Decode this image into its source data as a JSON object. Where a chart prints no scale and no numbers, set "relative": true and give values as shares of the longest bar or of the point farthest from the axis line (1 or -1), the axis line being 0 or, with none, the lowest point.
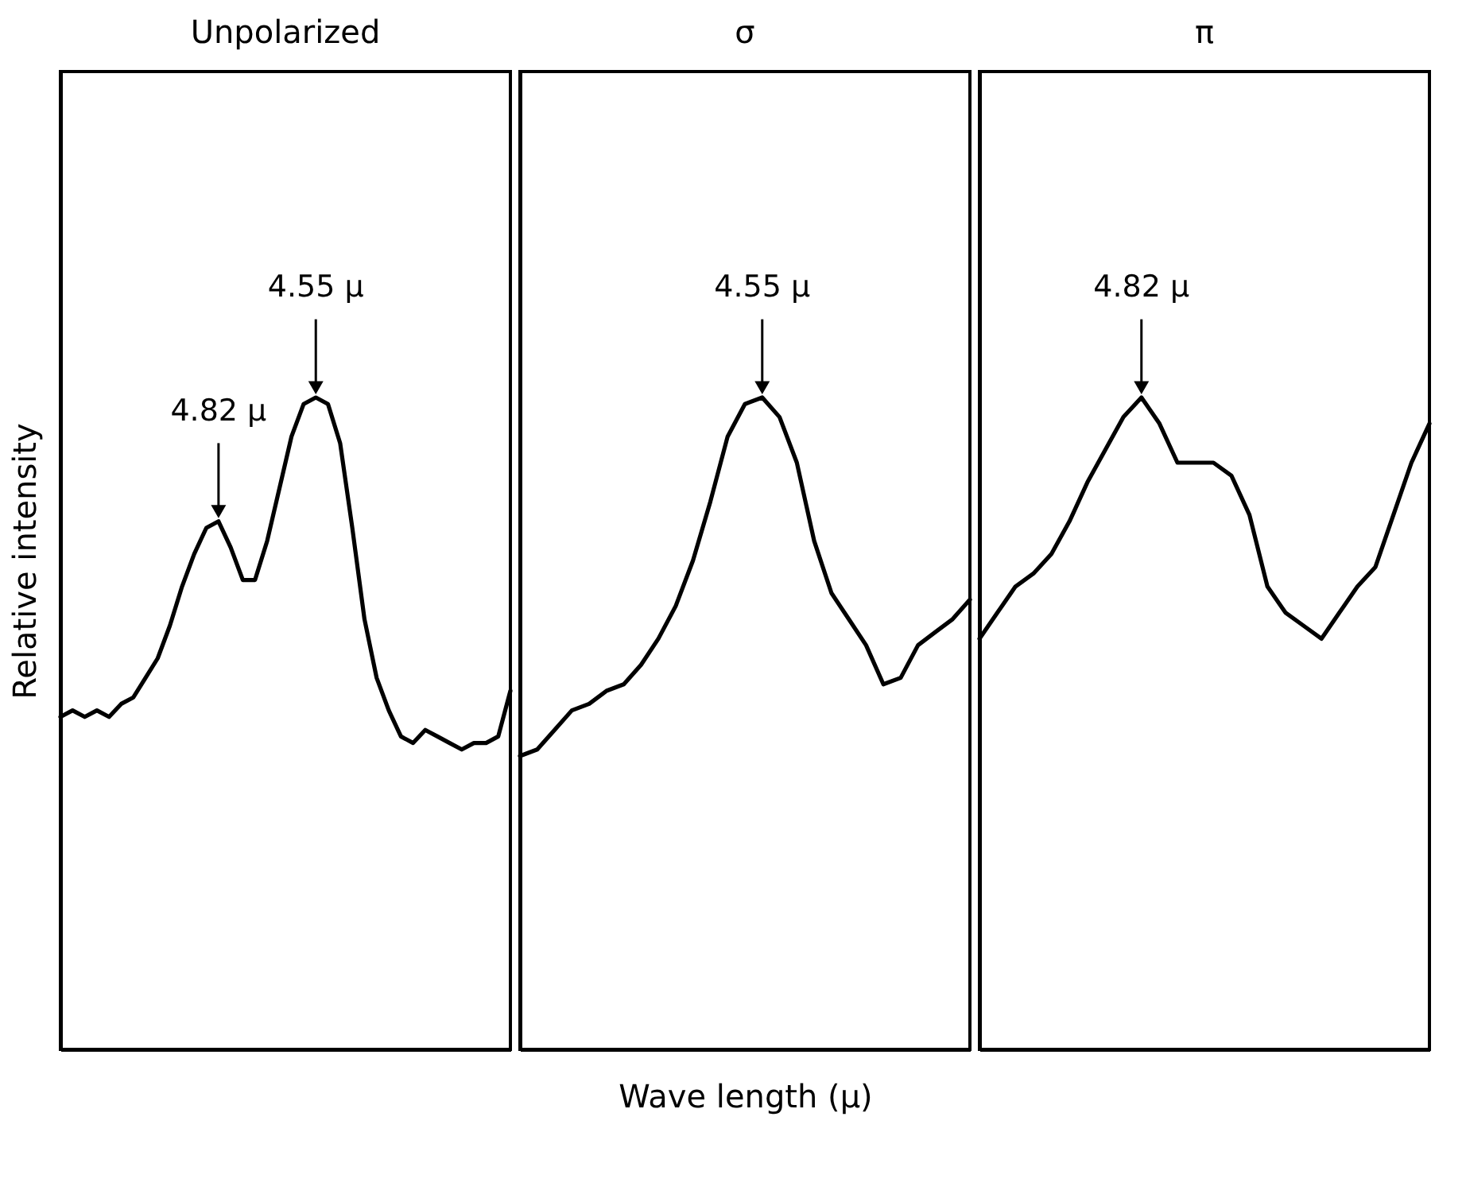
{
  "chart_data": [
    {
      "type": "line",
      "relative": true,
      "title": "Unpolarized",
      "ylabel": "Relative intensity",
      "tick_labels": false,
      "categories": [
        null,
        null,
        null,
        null,
        null,
        null,
        null,
        null,
        null,
        null,
        null,
        null,
        null,
        null,
        null,
        null,
        null,
        null,
        null,
        null,
        null,
        null,
        null,
        null,
        null,
        null,
        null,
        null,
        null,
        null,
        null,
        null,
        null,
        null,
        null,
        null,
        null,
        null
      ],
      "series": [
        {
          "color": "#000000",
          "values": [
            0.51,
            0.52,
            0.51,
            0.52,
            0.51,
            0.53,
            0.54,
            0.57,
            0.6,
            0.65,
            0.71,
            0.76,
            0.8,
            0.81,
            0.77,
            0.72,
            0.72,
            0.78,
            0.86,
            0.94,
            0.99,
            1.0,
            0.99,
            0.93,
            0.8,
            0.66,
            0.57,
            0.52,
            0.48,
            0.47,
            0.49,
            0.48,
            0.47,
            0.46,
            0.47,
            0.47,
            0.48,
            0.55
          ]
        }
      ],
      "annotations": [
        {
          "text": "4.82 μ",
          "y": 0.81
        },
        {
          "text": "4.55 μ",
          "y": 1.0
        }
      ]
    },
    {
      "type": "line",
      "relative": true,
      "title": "σ",
      "xlabel": "Wave length (μ)",
      "tick_labels": false,
      "categories": [
        null,
        null,
        null,
        null,
        null,
        null,
        null,
        null,
        null,
        null,
        null,
        null,
        null,
        null,
        null,
        null,
        null,
        null,
        null,
        null,
        null,
        null,
        null,
        null,
        null,
        null,
        null
      ],
      "series": [
        {
          "color": "#000000",
          "values": [
            0.45,
            0.46,
            0.49,
            0.52,
            0.53,
            0.55,
            0.56,
            0.59,
            0.63,
            0.68,
            0.75,
            0.84,
            0.94,
            0.99,
            1.0,
            0.97,
            0.9,
            0.78,
            0.7,
            0.66,
            0.62,
            0.56,
            0.57,
            0.62,
            0.64,
            0.66,
            0.69
          ]
        }
      ],
      "annotations": [
        {
          "text": "4.55 μ",
          "y": 1.0
        }
      ]
    },
    {
      "type": "line",
      "relative": true,
      "title": "π",
      "tick_labels": false,
      "categories": [
        null,
        null,
        null,
        null,
        null,
        null,
        null,
        null,
        null,
        null,
        null,
        null,
        null,
        null,
        null,
        null,
        null,
        null,
        null,
        null,
        null,
        null,
        null,
        null,
        null,
        null
      ],
      "series": [
        {
          "color": "#000000",
          "values": [
            0.63,
            0.67,
            0.71,
            0.73,
            0.76,
            0.81,
            0.87,
            0.92,
            0.97,
            1.0,
            0.96,
            0.9,
            0.9,
            0.9,
            0.88,
            0.82,
            0.71,
            0.67,
            0.65,
            0.63,
            0.67,
            0.71,
            0.74,
            0.82,
            0.9,
            0.96
          ]
        }
      ],
      "annotations": [
        {
          "text": "4.82 μ",
          "y": 1.0
        }
      ]
    }
  ]
}
